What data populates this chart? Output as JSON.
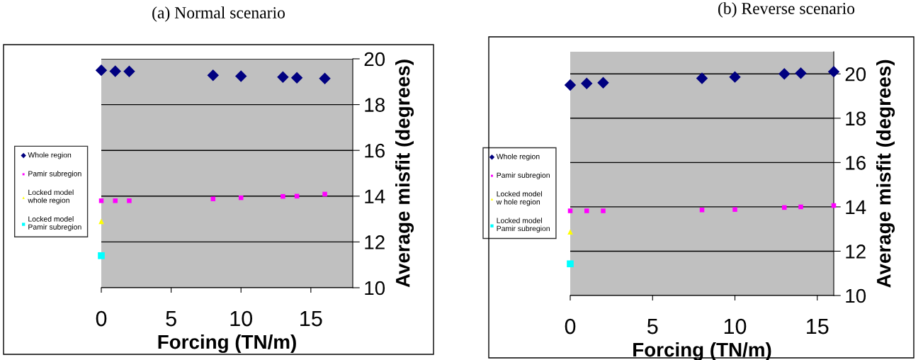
{
  "chart_data": [
    {
      "type": "scatter",
      "title": "(a) Normal scenario",
      "xlabel": "Forcing (TN/m)",
      "ylabel": "Average misfit (degrees)",
      "xlim": [
        0,
        18
      ],
      "xticks": [
        0,
        5,
        10,
        15
      ],
      "ylim": [
        10,
        20
      ],
      "yticks": [
        10,
        12,
        14,
        16,
        18,
        20
      ],
      "grid": "y",
      "legend": "left",
      "series": [
        {
          "name": "Whole region",
          "color": "#000080",
          "marker": "diamond",
          "x": [
            0,
            1,
            2,
            8,
            10,
            13,
            14,
            16
          ],
          "values": [
            19.5,
            19.46,
            19.45,
            19.28,
            19.24,
            19.2,
            19.17,
            19.14
          ]
        },
        {
          "name": "Pamir subregion",
          "color": "#ff00ff",
          "marker": "square",
          "x": [
            0,
            1,
            2,
            8,
            10,
            13,
            14,
            16
          ],
          "values": [
            13.8,
            13.8,
            13.8,
            13.88,
            13.93,
            13.99,
            14.0,
            14.09
          ]
        },
        {
          "name": "Locked model\nwhole region",
          "color": "#ffff00",
          "marker": "triangle",
          "x": [
            0
          ],
          "values": [
            12.9
          ]
        },
        {
          "name": "Locked model\nPamir subregion",
          "color": "#00ffff",
          "marker": "square",
          "x": [
            0
          ],
          "values": [
            11.4
          ]
        }
      ]
    },
    {
      "type": "scatter",
      "title": "(b) Reverse scenario",
      "xlabel": "Forcing (TN/m)",
      "ylabel": "Average misfit (degrees)",
      "xlim": [
        0,
        16
      ],
      "xticks": [
        0,
        5,
        10,
        15
      ],
      "ylim": [
        10,
        21
      ],
      "yticks": [
        10,
        12,
        14,
        16,
        18,
        20
      ],
      "grid": "y",
      "legend": "left",
      "series": [
        {
          "name": "Whole region",
          "color": "#000080",
          "marker": "diamond",
          "x": [
            0,
            1,
            2,
            8,
            10,
            13,
            14,
            16
          ],
          "values": [
            19.5,
            19.57,
            19.6,
            19.8,
            19.86,
            20.0,
            20.03,
            20.1
          ]
        },
        {
          "name": "Pamir subregion",
          "color": "#ff00ff",
          "marker": "square",
          "x": [
            0,
            1,
            2,
            8,
            10,
            13,
            14,
            16
          ],
          "values": [
            13.82,
            13.82,
            13.82,
            13.86,
            13.88,
            13.97,
            14.0,
            14.06
          ]
        },
        {
          "name": "Locked model\nw hole region",
          "color": "#ffff00",
          "marker": "triangle",
          "x": [
            0
          ],
          "values": [
            12.87
          ]
        },
        {
          "name": "Locked model\nPamir subregion",
          "color": "#00ffff",
          "marker": "square",
          "x": [
            0
          ],
          "values": [
            11.43
          ]
        }
      ]
    }
  ]
}
